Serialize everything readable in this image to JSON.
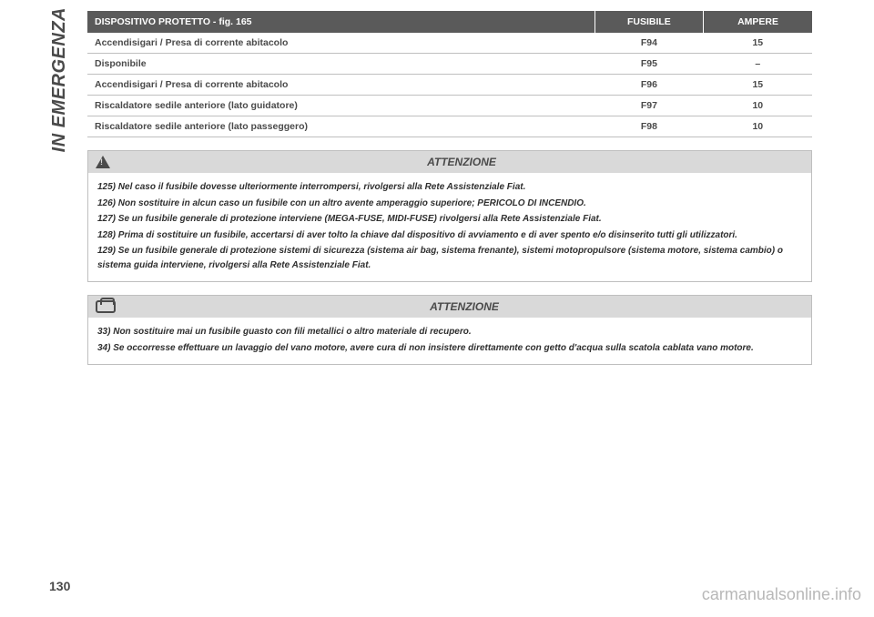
{
  "vertTab": "IN EMERGENZA",
  "pageNum": "130",
  "watermark": "carmanualsonline.info",
  "table": {
    "headers": [
      "DISPOSITIVO PROTETTO - fig. 165",
      "FUSIBILE",
      "AMPERE"
    ],
    "col_widths": [
      "70%",
      "15%",
      "15%"
    ],
    "rows": [
      [
        "Accendisigari / Presa di corrente abitacolo",
        "F94",
        "15"
      ],
      [
        "Disponibile",
        "F95",
        "–"
      ],
      [
        "Accendisigari / Presa di corrente abitacolo",
        "F96",
        "15"
      ],
      [
        "Riscaldatore sedile anteriore (lato guidatore)",
        "F97",
        "10"
      ],
      [
        "Riscaldatore sedile anteriore (lato passeggero)",
        "F98",
        "10"
      ]
    ],
    "bg_header": "#5a5a5a",
    "text_header": "#ffffff",
    "row_border": "#bfbfbf",
    "fontsize": 10.5
  },
  "warn1": {
    "title": "ATTENZIONE",
    "icon": "triangle-warning",
    "lines": [
      "125) Nel caso il fusibile dovesse ulteriormente interrompersi, rivolgersi alla Rete Assistenziale Fiat.",
      "126) Non sostituire in alcun caso un fusibile con un altro avente amperaggio superiore; PERICOLO DI INCENDIO.",
      "127) Se un fusibile generale di protezione interviene (MEGA-FUSE, MIDI-FUSE) rivolgersi alla Rete Assistenziale Fiat.",
      "128) Prima di sostituire un fusibile, accertarsi di aver tolto la chiave dal dispositivo di avviamento e di aver spento e/o disinserito tutti gli utilizzatori.",
      "129) Se un fusibile generale di protezione sistemi di sicurezza (sistema air bag, sistema frenante), sistemi motopropulsore (sistema motore, sistema cambio) o sistema guida interviene, rivolgersi alla Rete Assistenziale Fiat."
    ]
  },
  "warn2": {
    "title": "ATTENZIONE",
    "icon": "car-warning",
    "lines": [
      "33) Non sostituire mai un fusibile guasto con fili metallici o altro materiale di recupero.",
      "34) Se occorresse effettuare un lavaggio del vano motore, avere cura di non insistere direttamente con getto d'acqua sulla scatola cablata vano motore."
    ]
  },
  "colors": {
    "page_bg": "#ffffff",
    "text": "#4a4a4a",
    "warn_head_bg": "#d9d9d9",
    "watermark": "#b8b8b8"
  }
}
